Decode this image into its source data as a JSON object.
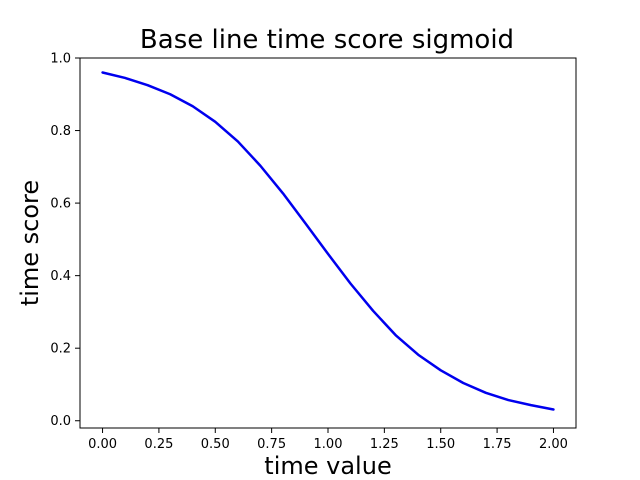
{
  "chart_data": {
    "type": "line",
    "title": "Base line time score sigmoid",
    "xlabel": "time value",
    "ylabel": "time score",
    "xlim": [
      -0.1,
      2.1
    ],
    "ylim": [
      -0.02,
      1.0
    ],
    "xticks": [
      0.0,
      0.25,
      0.5,
      0.75,
      1.0,
      1.25,
      1.5,
      1.75,
      2.0
    ],
    "xtick_labels": [
      "0.00",
      "0.25",
      "0.50",
      "0.75",
      "1.00",
      "1.25",
      "1.50",
      "1.75",
      "2.00"
    ],
    "yticks": [
      0.0,
      0.2,
      0.4,
      0.6,
      0.8,
      1.0
    ],
    "ytick_labels": [
      "0.0",
      "0.2",
      "0.4",
      "0.6",
      "0.8",
      "1.0"
    ],
    "grid": false,
    "legend": "none",
    "series": [
      {
        "color": "#0000ee",
        "x": [
          0.0,
          0.1,
          0.2,
          0.3,
          0.4,
          0.5,
          0.6,
          0.7,
          0.8,
          0.9,
          1.0,
          1.1,
          1.2,
          1.3,
          1.4,
          1.5,
          1.6,
          1.7,
          1.8,
          1.9,
          2.0
        ],
        "y": [
          0.96,
          0.945,
          0.925,
          0.9,
          0.867,
          0.824,
          0.77,
          0.703,
          0.627,
          0.544,
          0.46,
          0.378,
          0.303,
          0.236,
          0.182,
          0.139,
          0.104,
          0.077,
          0.057,
          0.043,
          0.031
        ]
      }
    ]
  }
}
